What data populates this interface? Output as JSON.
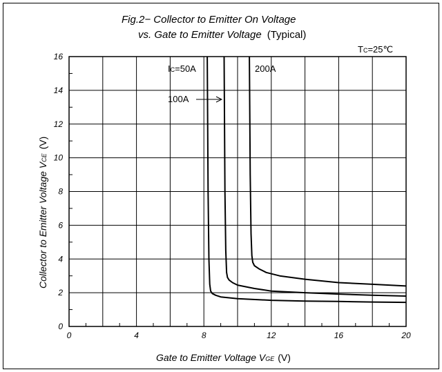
{
  "chart_data": {
    "type": "line",
    "title_line1": "Fig.2−  Collector to Emitter On Voltage",
    "title_line2": "vs. Gate to Emitter Voltage",
    "title_suffix": "(Typical)",
    "xlabel_main": "Gate to Emitter Voltage V",
    "xlabel_sub": "GE",
    "xlabel_unit": "(V)",
    "ylabel_main": "Collector to Emitter Voltage V",
    "ylabel_sub": "CE",
    "ylabel_unit": "(V)",
    "xlim": [
      0,
      20
    ],
    "ylim": [
      0,
      16
    ],
    "xticks": [
      "0",
      "4",
      "8",
      "12",
      "16",
      "20"
    ],
    "yticks": [
      "0",
      "2",
      "4",
      "6",
      "8",
      "10",
      "12",
      "14",
      "16"
    ],
    "grid": true,
    "annotations": {
      "temp_main": "T",
      "temp_sub": "C",
      "temp_value": "=25℃",
      "ic50_main": "I",
      "ic50_sub": "C",
      "ic50_value": "=50A",
      "ic100": "100A",
      "ic200": "200A"
    },
    "series": [
      {
        "name": "Ic=50A",
        "x": [
          8.2,
          8.25,
          8.3,
          8.35,
          8.4,
          8.5,
          8.7,
          9.0,
          10.0,
          12.0,
          14.0,
          16.0,
          18.0,
          20.0
        ],
        "y": [
          16.0,
          8.0,
          4.0,
          2.5,
          2.1,
          1.95,
          1.85,
          1.75,
          1.65,
          1.55,
          1.5,
          1.48,
          1.45,
          1.43
        ]
      },
      {
        "name": "100A",
        "x": [
          9.2,
          9.25,
          9.3,
          9.35,
          9.4,
          9.5,
          9.7,
          10.0,
          11.0,
          12.0,
          14.0,
          16.0,
          18.0,
          20.0
        ],
        "y": [
          16.0,
          8.0,
          4.5,
          3.2,
          2.9,
          2.75,
          2.6,
          2.45,
          2.25,
          2.1,
          2.0,
          1.92,
          1.85,
          1.8
        ]
      },
      {
        "name": "200A",
        "x": [
          10.7,
          10.75,
          10.8,
          10.85,
          10.9,
          11.0,
          11.3,
          11.7,
          12.5,
          14.0,
          16.0,
          18.0,
          20.0
        ],
        "y": [
          16.0,
          9.0,
          5.5,
          4.2,
          3.8,
          3.6,
          3.4,
          3.2,
          3.0,
          2.8,
          2.6,
          2.5,
          2.4
        ]
      }
    ]
  }
}
